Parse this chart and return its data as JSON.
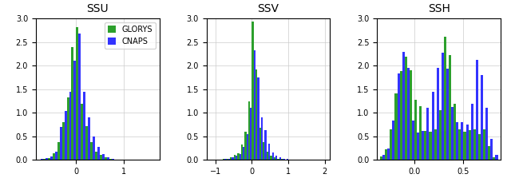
{
  "title1": "SSU",
  "title2": "SSV",
  "title3": "SSH",
  "glorys_color": "#2ca02c",
  "cnaps_color": "#3333ff",
  "legend_labels": [
    "GLORYS",
    "CNAPS"
  ],
  "ssu": {
    "xlim": [
      -0.85,
      1.75
    ],
    "ylim": [
      0,
      3.0
    ],
    "yticks": [
      0.0,
      0.5,
      1.0,
      1.5,
      2.0,
      2.5
    ],
    "bin_width": 0.1,
    "bin_centers": [
      -0.75,
      -0.65,
      -0.55,
      -0.45,
      -0.35,
      -0.25,
      -0.15,
      -0.05,
      0.05,
      0.15,
      0.25,
      0.35,
      0.45,
      0.55,
      0.65,
      0.75,
      0.85,
      0.95,
      1.05,
      1.15,
      1.25,
      1.35,
      1.45,
      1.55,
      1.65
    ],
    "glorys": [
      0.01,
      0.02,
      0.04,
      0.14,
      0.38,
      0.8,
      1.33,
      2.4,
      2.82,
      1.2,
      0.72,
      0.38,
      0.18,
      0.1,
      0.05,
      0.02,
      0.01,
      0.0,
      0.0,
      0.0,
      0.0,
      0.0,
      0.0,
      0.0,
      0.0
    ],
    "cnaps": [
      0.02,
      0.04,
      0.08,
      0.17,
      0.7,
      1.04,
      1.44,
      2.1,
      2.68,
      1.44,
      0.9,
      0.5,
      0.27,
      0.13,
      0.05,
      0.02,
      0.01,
      0.0,
      0.0,
      0.0,
      0.0,
      0.0,
      0.0,
      0.0,
      0.0
    ]
  },
  "ssv": {
    "xlim": [
      -1.25,
      2.15
    ],
    "ylim": [
      0,
      3.0
    ],
    "yticks": [
      0.0,
      0.5,
      1.0,
      1.5,
      2.0,
      2.5,
      3.0
    ],
    "bin_width": 0.1,
    "bin_centers": [
      -1.15,
      -1.05,
      -0.95,
      -0.85,
      -0.75,
      -0.65,
      -0.55,
      -0.45,
      -0.35,
      -0.25,
      -0.15,
      -0.05,
      0.05,
      0.15,
      0.25,
      0.35,
      0.45,
      0.55,
      0.65,
      0.75,
      0.85,
      0.95,
      1.05,
      1.15,
      1.25,
      1.35,
      1.45,
      1.55,
      1.65,
      1.75,
      1.85,
      1.95,
      2.05
    ],
    "glorys": [
      0.0,
      0.0,
      0.01,
      0.01,
      0.02,
      0.03,
      0.06,
      0.1,
      0.14,
      0.32,
      0.6,
      1.25,
      2.93,
      1.92,
      0.69,
      0.38,
      0.17,
      0.09,
      0.05,
      0.03,
      0.02,
      0.01,
      0.01,
      0.0,
      0.0,
      0.0,
      0.0,
      0.0,
      0.0,
      0.0,
      0.0,
      0.0,
      0.0
    ],
    "cnaps": [
      0.0,
      0.0,
      0.01,
      0.01,
      0.02,
      0.03,
      0.05,
      0.09,
      0.12,
      0.28,
      0.55,
      1.1,
      2.33,
      1.75,
      0.9,
      0.64,
      0.35,
      0.16,
      0.09,
      0.05,
      0.03,
      0.02,
      0.01,
      0.0,
      0.0,
      0.0,
      0.0,
      0.0,
      0.0,
      0.0,
      0.0,
      0.0,
      0.0
    ]
  },
  "ssh": {
    "xlim": [
      -0.38,
      0.88
    ],
    "ylim": [
      0,
      3.0
    ],
    "yticks": [
      0.0,
      0.5,
      1.0,
      1.5,
      2.0,
      2.5
    ],
    "bin_width": 0.05,
    "bin_centers": [
      -0.325,
      -0.275,
      -0.225,
      -0.175,
      -0.125,
      -0.075,
      -0.025,
      0.025,
      0.075,
      0.125,
      0.175,
      0.225,
      0.275,
      0.325,
      0.375,
      0.425,
      0.475,
      0.525,
      0.575,
      0.625,
      0.675,
      0.725,
      0.775,
      0.825
    ],
    "glorys": [
      0.08,
      0.22,
      0.65,
      1.42,
      1.88,
      2.2,
      1.9,
      1.28,
      1.14,
      0.62,
      0.6,
      0.65,
      1.05,
      2.62,
      2.22,
      1.2,
      0.65,
      0.6,
      0.63,
      0.65,
      0.55,
      0.65,
      0.3,
      0.05
    ],
    "cnaps": [
      0.1,
      0.25,
      0.84,
      1.84,
      2.3,
      1.96,
      0.84,
      0.58,
      0.62,
      1.1,
      1.44,
      1.96,
      2.28,
      1.94,
      1.12,
      0.8,
      0.8,
      0.75,
      1.2,
      2.13,
      1.8,
      1.1,
      0.44,
      0.1
    ]
  }
}
